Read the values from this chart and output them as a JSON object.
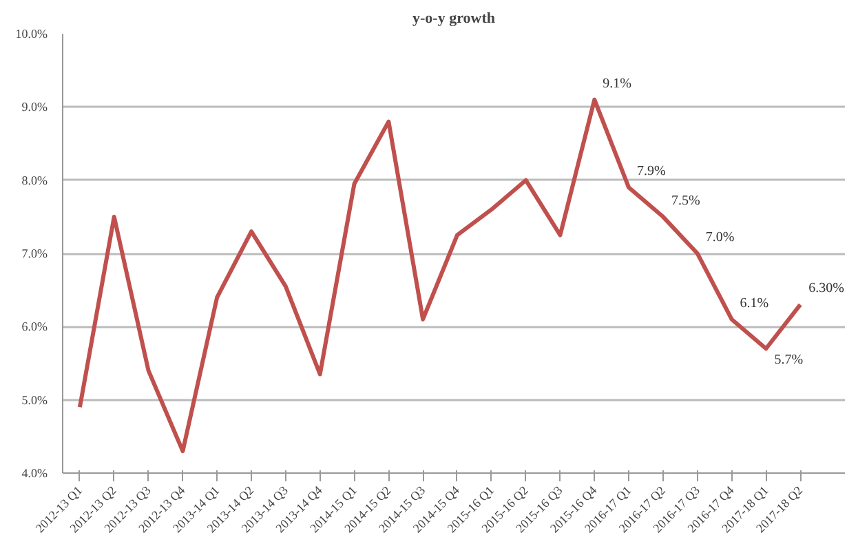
{
  "chart_data": {
    "type": "line",
    "title": "y-o-y growth",
    "categories": [
      "2012-13 Q1",
      "2012-13 Q2",
      "2012-13 Q3",
      "2012-13 Q4",
      "2013-14 Q1",
      "2013-14 Q2",
      "2013-14 Q3",
      "2013-14 Q4",
      "2014-15 Q1",
      "2014-15 Q2",
      "2014-15 Q3",
      "2014-15 Q4",
      "2015-16 Q1",
      "2015-16 Q2",
      "2015-16 Q3",
      "2015-16 Q4",
      "2016-17 Q1",
      "2016-17 Q2",
      "2016-17 Q3",
      "2016-17 Q4",
      "2017-18 Q1",
      "2017-18 Q2"
    ],
    "series": [
      {
        "color": "#c0504d",
        "values": [
          4.9,
          7.5,
          5.4,
          4.3,
          6.4,
          7.3,
          6.55,
          5.35,
          7.95,
          8.8,
          6.1,
          7.25,
          7.6,
          8.0,
          7.25,
          9.1,
          7.9,
          7.5,
          7.0,
          6.1,
          5.7,
          6.3
        ],
        "value_labels": [
          null,
          null,
          null,
          null,
          null,
          null,
          null,
          null,
          null,
          null,
          null,
          null,
          null,
          null,
          null,
          "9.1%",
          "7.9%",
          "7.5%",
          "7.0%",
          "6.1%",
          "5.7%",
          "6.30%"
        ]
      }
    ],
    "ylim": [
      4,
      10
    ],
    "yticks": [
      {
        "value": 4,
        "label": "4.0%"
      },
      {
        "value": 5,
        "label": "5.0%"
      },
      {
        "value": 6,
        "label": "6.0%"
      },
      {
        "value": 7,
        "label": "7.0%"
      },
      {
        "value": 8,
        "label": "8.0%"
      },
      {
        "value": 9,
        "label": "9.0%"
      },
      {
        "value": 10,
        "label": "10.0%"
      }
    ],
    "grid": "y",
    "marker": "none",
    "line_style": "solid"
  }
}
